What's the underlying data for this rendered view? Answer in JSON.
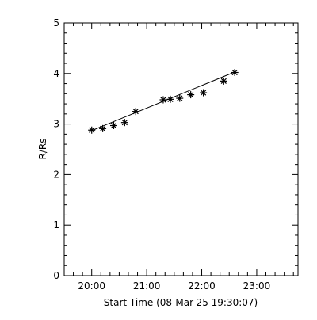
{
  "chart_data": {
    "type": "scatter",
    "title": "",
    "xlabel": "Start Time (08-Mar-25 19:30:07)",
    "ylabel": "R/Rs",
    "x_unit": "hours",
    "xlim": [
      19.5,
      23.75
    ],
    "ylim": [
      0,
      5
    ],
    "x_ticks": [
      {
        "value": 20,
        "label": "20:00"
      },
      {
        "value": 21,
        "label": "21:00"
      },
      {
        "value": 22,
        "label": "22:00"
      },
      {
        "value": 23,
        "label": "23:00"
      }
    ],
    "y_ticks": [
      {
        "value": 0,
        "label": "0"
      },
      {
        "value": 1,
        "label": "1"
      },
      {
        "value": 2,
        "label": "2"
      },
      {
        "value": 3,
        "label": "3"
      },
      {
        "value": 4,
        "label": "4"
      },
      {
        "value": 5,
        "label": "5"
      }
    ],
    "grid": false,
    "series": [
      {
        "marker": "asterisk",
        "x": [
          20.0,
          20.2,
          20.4,
          20.6,
          20.8,
          21.3,
          21.43,
          21.6,
          21.8,
          22.03,
          22.4,
          22.6
        ],
        "y": [
          2.88,
          2.91,
          2.97,
          3.03,
          3.25,
          3.48,
          3.49,
          3.51,
          3.58,
          3.62,
          3.85,
          4.02
        ]
      }
    ],
    "fit_line": {
      "x": [
        20.0,
        22.6
      ],
      "y": [
        2.87,
        4.03
      ]
    }
  }
}
